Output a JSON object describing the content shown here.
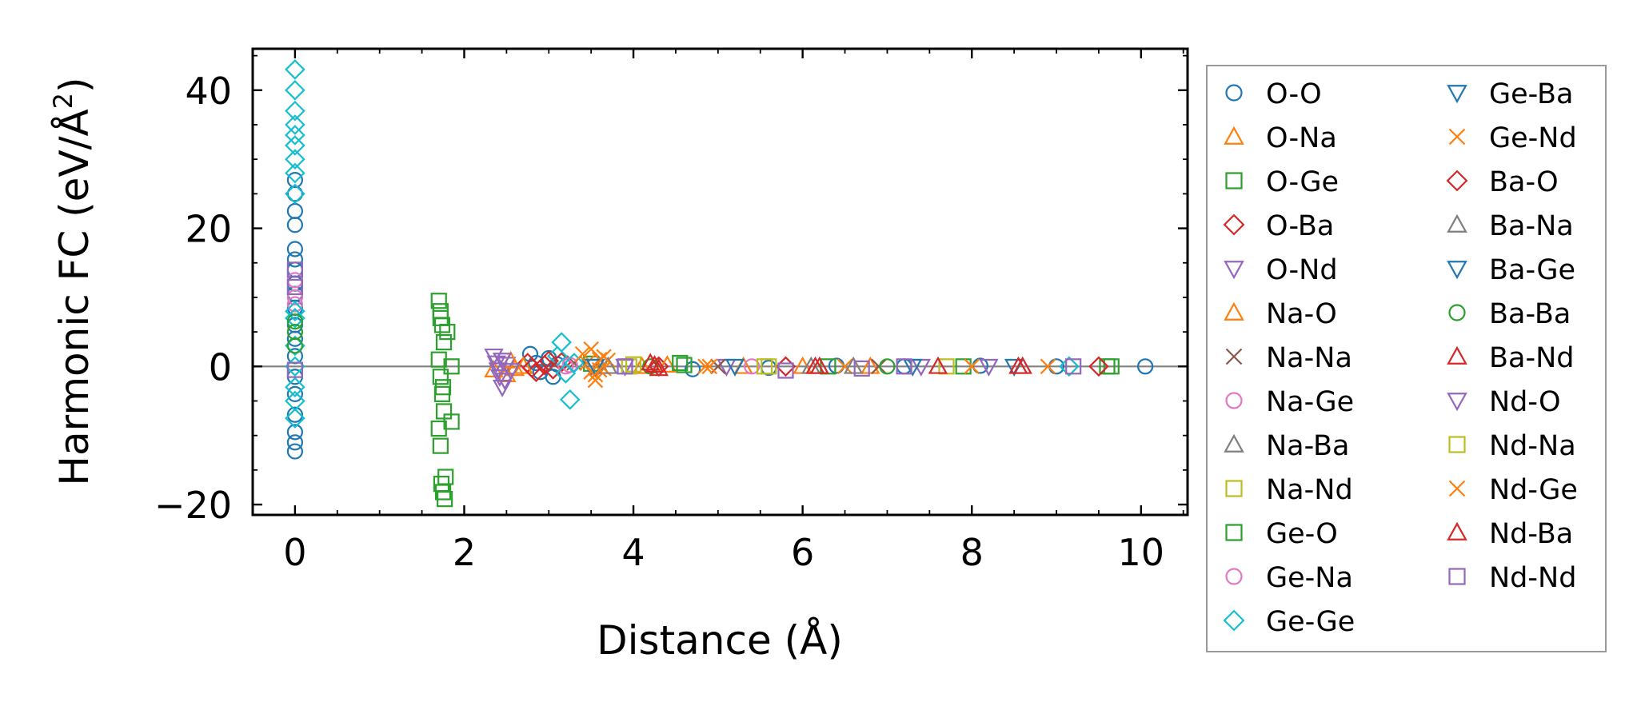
{
  "chart_data": {
    "type": "scatter",
    "xlabel": "Distance (Å)",
    "ylabel": "Harmonic FC (eV/Å²)",
    "ylabel_parts": {
      "main": "Harmonic FC (eV/Å",
      "sup": "2",
      "end": ")"
    },
    "xlim": [
      -0.5,
      10.55
    ],
    "ylim": [
      -21.5,
      46
    ],
    "xticks": [
      0,
      2,
      4,
      6,
      8,
      10
    ],
    "xtick_labels": [
      "0",
      "2",
      "4",
      "6",
      "8",
      "10"
    ],
    "yticks": [
      -20,
      0,
      20,
      40
    ],
    "ytick_labels": [
      "−20",
      "0",
      "20",
      "40"
    ],
    "zero_line": true,
    "grid": false,
    "legend_position": "outside-right",
    "series": [
      {
        "name": "O-O",
        "marker": "circle",
        "color": "#1f77b4",
        "points": [
          [
            0,
            -12.3
          ],
          [
            0,
            -11
          ],
          [
            0,
            -9.5
          ],
          [
            0,
            -7
          ],
          [
            0,
            -4
          ],
          [
            0,
            -1.5
          ],
          [
            0,
            1.5
          ],
          [
            0,
            4
          ],
          [
            0,
            6
          ],
          [
            0,
            8.5
          ],
          [
            0,
            10.5
          ],
          [
            0,
            12
          ],
          [
            0,
            14
          ],
          [
            0,
            15.5
          ],
          [
            0,
            17
          ],
          [
            0,
            20.5
          ],
          [
            0,
            22.5
          ],
          [
            0,
            25
          ],
          [
            0,
            27
          ],
          [
            2.78,
            1.8
          ],
          [
            2.85,
            0.5
          ],
          [
            2.9,
            -0.8
          ],
          [
            3.0,
            1.2
          ],
          [
            3.05,
            -1.5
          ],
          [
            3.1,
            0.3
          ],
          [
            4.7,
            -0.4
          ],
          [
            5.6,
            -0.2
          ],
          [
            6.4,
            0.1
          ],
          [
            7.2,
            0.0
          ],
          [
            8.1,
            0.1
          ],
          [
            9.0,
            0.0
          ],
          [
            10.05,
            0.0
          ]
        ]
      },
      {
        "name": "O-Na",
        "marker": "triangle-up",
        "color": "#ff7f0e",
        "points": [
          [
            2.35,
            -0.5
          ],
          [
            2.5,
            -1.2
          ],
          [
            2.6,
            -0.3
          ],
          [
            4.1,
            0.0
          ],
          [
            5.3,
            0.0
          ],
          [
            6.8,
            0.0
          ]
        ]
      },
      {
        "name": "O-Ge",
        "marker": "square",
        "color": "#2ca02c",
        "points": [
          [
            1.7,
            9.5
          ],
          [
            1.72,
            8
          ],
          [
            1.74,
            6
          ],
          [
            1.76,
            3.5
          ],
          [
            1.7,
            1
          ],
          [
            1.72,
            -1.5
          ],
          [
            1.74,
            -4
          ],
          [
            1.76,
            -6.5
          ],
          [
            1.7,
            -9
          ],
          [
            1.72,
            -11.5
          ],
          [
            1.8,
            5
          ],
          [
            1.85,
            0
          ],
          [
            1.85,
            -8
          ],
          [
            3.5,
            0.4
          ],
          [
            4.6,
            0.2
          ],
          [
            6.3,
            0.0
          ],
          [
            7.9,
            0.0
          ],
          [
            9.65,
            0.0
          ]
        ]
      },
      {
        "name": "O-Ba",
        "marker": "diamond",
        "color": "#d62728",
        "points": [
          [
            2.75,
            0.5
          ],
          [
            2.85,
            -0.8
          ],
          [
            2.95,
            0.2
          ],
          [
            3.05,
            -0.4
          ],
          [
            3.15,
            0.6
          ],
          [
            4.3,
            0.0
          ],
          [
            5.8,
            0.0
          ]
        ]
      },
      {
        "name": "O-Nd",
        "marker": "triangle-down",
        "color": "#9467bd",
        "points": [
          [
            2.35,
            1.5
          ],
          [
            2.38,
            0.5
          ],
          [
            2.4,
            -0.5
          ],
          [
            2.42,
            -1.5
          ],
          [
            2.45,
            -3
          ],
          [
            2.48,
            -2
          ],
          [
            2.5,
            0.3
          ],
          [
            3.9,
            0.0
          ],
          [
            5.1,
            0.0
          ],
          [
            7.4,
            0.0
          ]
        ]
      },
      {
        "name": "Na-O",
        "marker": "triangle-up",
        "color": "#ff7f0e",
        "points": [
          [
            2.55,
            0.8
          ],
          [
            2.7,
            0.0
          ],
          [
            4.4,
            0.2
          ],
          [
            6.0,
            0.0
          ]
        ]
      },
      {
        "name": "Na-Na",
        "marker": "x",
        "color": "#8c564b",
        "points": [
          [
            3.3,
            0.5
          ],
          [
            5.0,
            0.0
          ],
          [
            6.9,
            0.0
          ]
        ]
      },
      {
        "name": "Na-Ge",
        "marker": "circle",
        "color": "#e377c2",
        "points": [
          [
            0,
            12.5
          ],
          [
            3.2,
            0.0
          ],
          [
            5.4,
            0.0
          ]
        ]
      },
      {
        "name": "Na-Ba",
        "marker": "triangle-up",
        "color": "#7f7f7f",
        "points": [
          [
            3.6,
            0.0
          ],
          [
            6.1,
            0.0
          ]
        ]
      },
      {
        "name": "Na-Nd",
        "marker": "square",
        "color": "#bcbd22",
        "points": [
          [
            3.95,
            0.0
          ],
          [
            5.55,
            0.0
          ],
          [
            7.7,
            0.0
          ]
        ]
      },
      {
        "name": "Ge-O",
        "marker": "square",
        "color": "#2ca02c",
        "points": [
          [
            1.73,
            -17
          ],
          [
            1.75,
            -18.2
          ],
          [
            1.77,
            -19.2
          ],
          [
            1.78,
            -16
          ],
          [
            1.72,
            7
          ],
          [
            1.75,
            -3
          ],
          [
            4.55,
            0.5
          ],
          [
            9.6,
            0.0
          ]
        ]
      },
      {
        "name": "Ge-Na",
        "marker": "circle",
        "color": "#e377c2",
        "points": [
          [
            0,
            9
          ],
          [
            0,
            10
          ],
          [
            3.25,
            0.2
          ]
        ]
      },
      {
        "name": "Ge-Ge",
        "marker": "diamond",
        "color": "#17becf",
        "points": [
          [
            0,
            43
          ],
          [
            0,
            40
          ],
          [
            0,
            37
          ],
          [
            0,
            35
          ],
          [
            0,
            33.5
          ],
          [
            0,
            32
          ],
          [
            0,
            30
          ],
          [
            0,
            28
          ],
          [
            0,
            25
          ],
          [
            0,
            8
          ],
          [
            0,
            7
          ],
          [
            0,
            3
          ],
          [
            0,
            0
          ],
          [
            0,
            -3
          ],
          [
            0,
            -5
          ],
          [
            0,
            -7.5
          ],
          [
            3.1,
            1.5
          ],
          [
            3.15,
            3.5
          ],
          [
            3.2,
            -1
          ],
          [
            3.25,
            -4.8
          ],
          [
            3.3,
            0.5
          ],
          [
            9.15,
            0.0
          ]
        ]
      },
      {
        "name": "Ge-Ba",
        "marker": "triangle-down",
        "color": "#1f77b4",
        "points": [
          [
            3.5,
            0.0
          ],
          [
            5.2,
            0.0
          ],
          [
            8.5,
            0.0
          ]
        ]
      },
      {
        "name": "Ge-Nd",
        "marker": "x",
        "color": "#ff7f0e",
        "points": [
          [
            3.4,
            1.8
          ],
          [
            3.45,
            0.5
          ],
          [
            3.5,
            -0.8
          ],
          [
            3.55,
            -2
          ],
          [
            3.6,
            1
          ],
          [
            3.65,
            -0.3
          ],
          [
            3.7,
            0.9
          ],
          [
            3.5,
            2.5
          ],
          [
            3.55,
            -1.2
          ],
          [
            4.9,
            0.0
          ],
          [
            6.5,
            0.0
          ],
          [
            8.9,
            0.0
          ]
        ]
      },
      {
        "name": "Ba-O",
        "marker": "diamond",
        "color": "#d62728",
        "points": [
          [
            2.8,
            -0.2
          ],
          [
            3.0,
            0.8
          ],
          [
            9.5,
            0.0
          ]
        ]
      },
      {
        "name": "Ba-Na",
        "marker": "triangle-up",
        "color": "#7f7f7f",
        "points": [
          [
            3.7,
            0.0
          ],
          [
            6.6,
            0.0
          ]
        ]
      },
      {
        "name": "Ba-Ge",
        "marker": "triangle-down",
        "color": "#1f77b4",
        "points": [
          [
            3.55,
            0.0
          ],
          [
            7.3,
            0.0
          ]
        ]
      },
      {
        "name": "Ba-Ba",
        "marker": "circle",
        "color": "#2ca02c",
        "points": [
          [
            0,
            6.5
          ],
          [
            0,
            5
          ],
          [
            0,
            3
          ],
          [
            4.2,
            0.0
          ],
          [
            7.0,
            0.0
          ]
        ]
      },
      {
        "name": "Ba-Nd",
        "marker": "triangle-up",
        "color": "#d62728",
        "points": [
          [
            4.2,
            0.5
          ],
          [
            4.3,
            -0.3
          ],
          [
            6.2,
            0.0
          ],
          [
            7.6,
            0.0
          ],
          [
            8.6,
            0.0
          ]
        ]
      },
      {
        "name": "Nd-O",
        "marker": "triangle-down",
        "color": "#9467bd",
        "points": [
          [
            2.45,
            0.9
          ],
          [
            2.55,
            -0.6
          ],
          [
            8.2,
            0.0
          ]
        ]
      },
      {
        "name": "Nd-Na",
        "marker": "square",
        "color": "#bcbd22",
        "points": [
          [
            4.0,
            0.3
          ],
          [
            5.6,
            0.0
          ]
        ]
      },
      {
        "name": "Nd-Ge",
        "marker": "x",
        "color": "#ff7f0e",
        "points": [
          [
            3.6,
            -0.5
          ],
          [
            3.65,
            1.4
          ],
          [
            4.85,
            0.0
          ],
          [
            8.0,
            0.0
          ]
        ]
      },
      {
        "name": "Nd-Ba",
        "marker": "triangle-up",
        "color": "#d62728",
        "points": [
          [
            4.25,
            0.2
          ],
          [
            6.15,
            0.0
          ],
          [
            8.55,
            0.0
          ]
        ]
      },
      {
        "name": "Nd-Nd",
        "marker": "square",
        "color": "#9467bd",
        "points": [
          [
            0,
            14
          ],
          [
            0,
            11.5
          ],
          [
            0,
            -0.5
          ],
          [
            3.9,
            0.0
          ],
          [
            5.8,
            -0.6
          ],
          [
            6.7,
            -0.3
          ],
          [
            7.2,
            0.0
          ],
          [
            9.2,
            0.0
          ]
        ]
      }
    ]
  }
}
